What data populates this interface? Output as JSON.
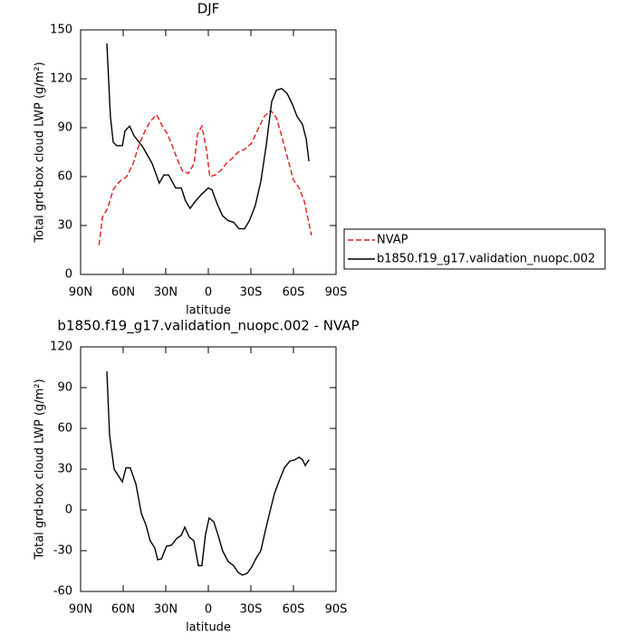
{
  "chart_data": [
    {
      "type": "line",
      "title": "DJF",
      "xlabel": "latitude",
      "ylabel": "Total grd-box cloud LWP (g/m²)",
      "xlim": [
        90,
        -90
      ],
      "xticks": [
        {
          "value": 90,
          "label": "90N"
        },
        {
          "value": 60,
          "label": "60N"
        },
        {
          "value": 30,
          "label": "30N"
        },
        0,
        {
          "value": -30,
          "label": "30S"
        },
        {
          "value": -60,
          "label": "60S"
        },
        {
          "value": -90,
          "label": "90S"
        }
      ],
      "ylim": [
        0,
        150
      ],
      "yticks": [
        0,
        30,
        60,
        90,
        120,
        150
      ],
      "legend": "right",
      "series": [
        {
          "name": "NVAP",
          "color": "#e31a1c",
          "linestyle": "dashed",
          "x": [
            77,
            74.7,
            71,
            67,
            62.5,
            57.5,
            53,
            49,
            44.7,
            40.8,
            36.4,
            33,
            28.7,
            25,
            22,
            18,
            14,
            10,
            7.6,
            4.5,
            1,
            -1,
            -5,
            -9,
            -12.7,
            -16.6,
            -21,
            -25.5,
            -30.6,
            -35,
            -39.5,
            -44,
            -48,
            -51.7,
            -56,
            -60,
            -64,
            -67.6,
            -70,
            -72.7
          ],
          "values": [
            18,
            35,
            40.5,
            52,
            57,
            60,
            68,
            79,
            88,
            94,
            98,
            92,
            86,
            78,
            71,
            63,
            62,
            68,
            86,
            91,
            75,
            60,
            61,
            64,
            68,
            71,
            75,
            76.7,
            80.6,
            89,
            97,
            100.6,
            96,
            85,
            71,
            58,
            53,
            45,
            35,
            24
          ]
        },
        {
          "name": "b1850.f19_g17.validation_nuopc.002",
          "color": "#000000",
          "linestyle": "solid",
          "x": [
            71.5,
            69,
            67,
            64.5,
            60.6,
            58.7,
            55.5,
            52.3,
            46,
            39.6,
            34.5,
            31.3,
            28,
            23,
            19,
            16,
            12.8,
            9,
            5,
            0,
            -2.5,
            -6.4,
            -10,
            -14,
            -17.8,
            -21.7,
            -25.5,
            -29,
            -33,
            -37,
            -40.8,
            -44.7,
            -48,
            -51.7,
            -55.5,
            -59.4,
            -62.5,
            -66.4,
            -69,
            -70.9
          ],
          "values": [
            141.7,
            97,
            81,
            79,
            79,
            88,
            91,
            85,
            78,
            68,
            56,
            61,
            61,
            53,
            53,
            45,
            40.5,
            45,
            49,
            53,
            52,
            43,
            36,
            33,
            32,
            28,
            28,
            33,
            42,
            57,
            79,
            106,
            113,
            114,
            111,
            104,
            97,
            92,
            83,
            69.4
          ]
        }
      ]
    },
    {
      "type": "line",
      "title": "b1850.f19_g17.validation_nuopc.002 - NVAP",
      "xlabel": "latitude",
      "ylabel": "Total grd-box cloud LWP (g/m²)",
      "xlim": [
        90,
        -90
      ],
      "xticks": [
        {
          "value": 90,
          "label": "90N"
        },
        {
          "value": 60,
          "label": "60N"
        },
        {
          "value": 30,
          "label": "30N"
        },
        0,
        {
          "value": -30,
          "label": "30S"
        },
        {
          "value": -60,
          "label": "60S"
        },
        {
          "value": -90,
          "label": "90S"
        }
      ],
      "ylim": [
        -60,
        120
      ],
      "yticks": [
        -60,
        -30,
        0,
        30,
        60,
        90,
        120
      ],
      "series": [
        {
          "color": "#000000",
          "linestyle": "solid",
          "x": [
            71.5,
            69.6,
            66.4,
            60.6,
            58,
            55,
            51,
            47.2,
            44,
            41,
            37.7,
            35.7,
            33,
            29.4,
            26,
            22.3,
            19,
            16.6,
            13.4,
            10.2,
            7,
            4.5,
            2,
            -0.6,
            -3.8,
            -7,
            -10,
            -14,
            -17.8,
            -21,
            -24,
            -27.4,
            -30.6,
            -33.8,
            -37,
            -40,
            -43.4,
            -46.6,
            -49.8,
            -53.6,
            -57.5,
            -60.6,
            -64,
            -66.4,
            -68.3,
            -71
          ],
          "values": [
            102,
            55,
            30,
            20.7,
            31,
            31,
            19,
            -2.7,
            -11,
            -22.7,
            -28,
            -36.7,
            -36,
            -26.7,
            -26,
            -21,
            -18.7,
            -12.7,
            -20,
            -22.7,
            -41,
            -41,
            -18,
            -6,
            -8.7,
            -19,
            -30,
            -38,
            -41,
            -46,
            -48,
            -46.7,
            -42,
            -35.3,
            -30,
            -16,
            -1.3,
            12,
            21,
            31,
            36,
            36.7,
            38.7,
            37,
            32.7,
            37
          ]
        }
      ]
    }
  ]
}
